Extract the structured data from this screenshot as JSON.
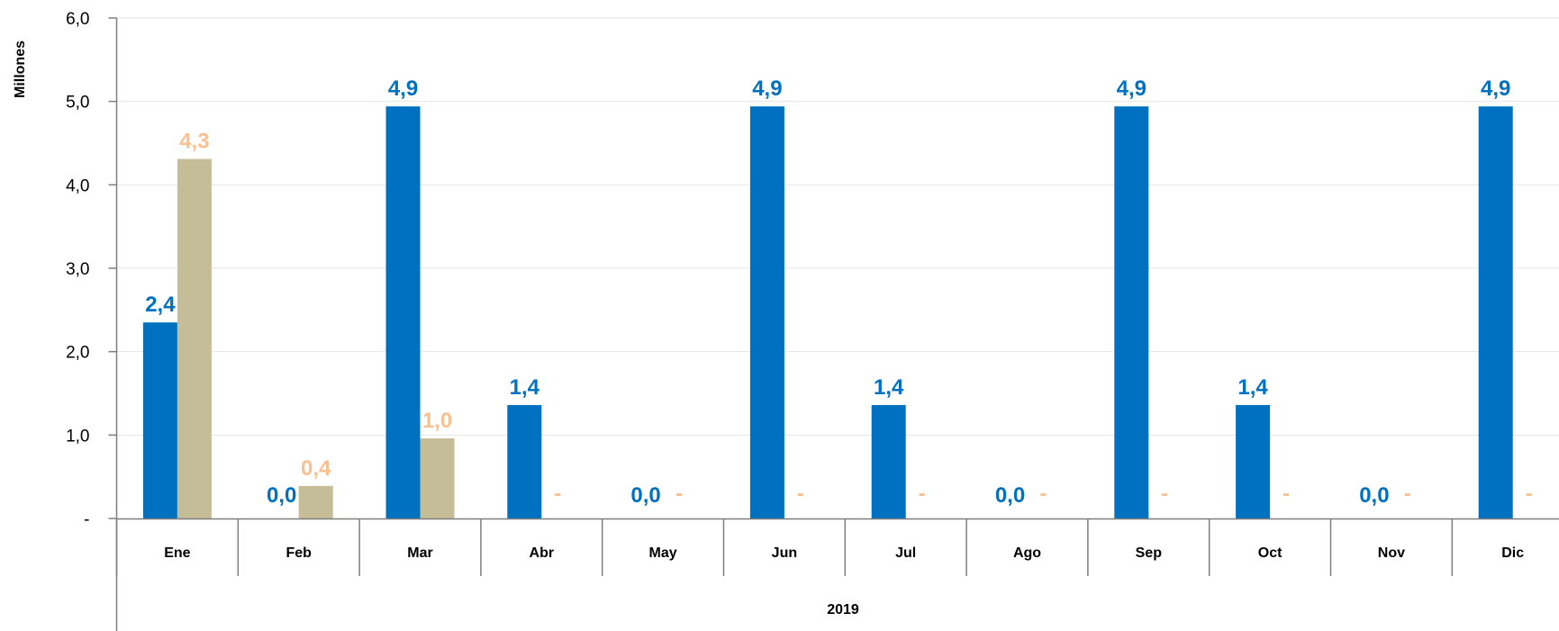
{
  "chart_data": {
    "type": "bar",
    "ylabel": "Millones",
    "ylim": [
      0,
      6
    ],
    "y_ticks": [
      "-",
      "1,0",
      "2,0",
      "3,0",
      "4,0",
      "5,0",
      "6,0"
    ],
    "grid": true,
    "group_label": "2019",
    "categories": [
      "Ene",
      "Feb",
      "Mar",
      "Abr",
      "May",
      "Jun",
      "Jul",
      "Ago",
      "Sep",
      "Oct",
      "Nov",
      "Dic"
    ],
    "series": [
      {
        "color": "#0070C0",
        "label_color": "#0070C0",
        "values": [
          2.35,
          0,
          4.94,
          1.36,
          0,
          4.94,
          1.36,
          0,
          4.94,
          1.36,
          0,
          4.94
        ],
        "labels": [
          "2,4",
          "0,0",
          "4,9",
          "1,4",
          "0,0",
          "4,9",
          "1,4",
          "0,0",
          "4,9",
          "1,4",
          "0,0",
          "4,9"
        ]
      },
      {
        "color": "#C4BD97",
        "label_color": "#FAC090",
        "values": [
          4.31,
          0.39,
          0.96,
          0,
          0,
          0,
          0,
          0,
          0,
          0,
          0,
          0
        ],
        "labels": [
          "4,3",
          "0,4",
          "1,0",
          "-",
          "-",
          "-",
          "-",
          "-",
          "-",
          "-",
          "-",
          "-"
        ]
      }
    ]
  }
}
